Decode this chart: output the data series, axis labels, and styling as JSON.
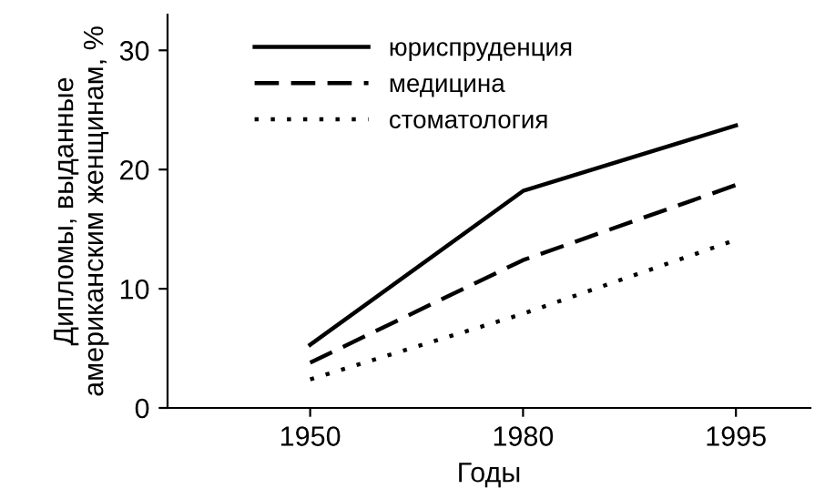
{
  "chart_data": {
    "type": "line",
    "xlabel": "Годы",
    "ylabel": "Дипломы, выданные\nамериканским женщинам, %",
    "categories": [
      "1950",
      "1980",
      "1995"
    ],
    "series": [
      {
        "name": "юриспруденция",
        "color": "#000000",
        "values": [
          5.3,
          18.2,
          23.7
        ],
        "line_style": "solid"
      },
      {
        "name": "медицина",
        "color": "#000000",
        "values": [
          3.8,
          12.4,
          18.7
        ],
        "line_style": "dashed"
      },
      {
        "name": "стоматология",
        "color": "#000000",
        "values": [
          2.4,
          7.9,
          14.1
        ],
        "line_style": "dotted"
      }
    ],
    "ylim": [
      0,
      33
    ],
    "yticks": [
      0,
      10,
      20,
      30
    ],
    "grid": false,
    "legend": "top left",
    "marker": "none"
  }
}
